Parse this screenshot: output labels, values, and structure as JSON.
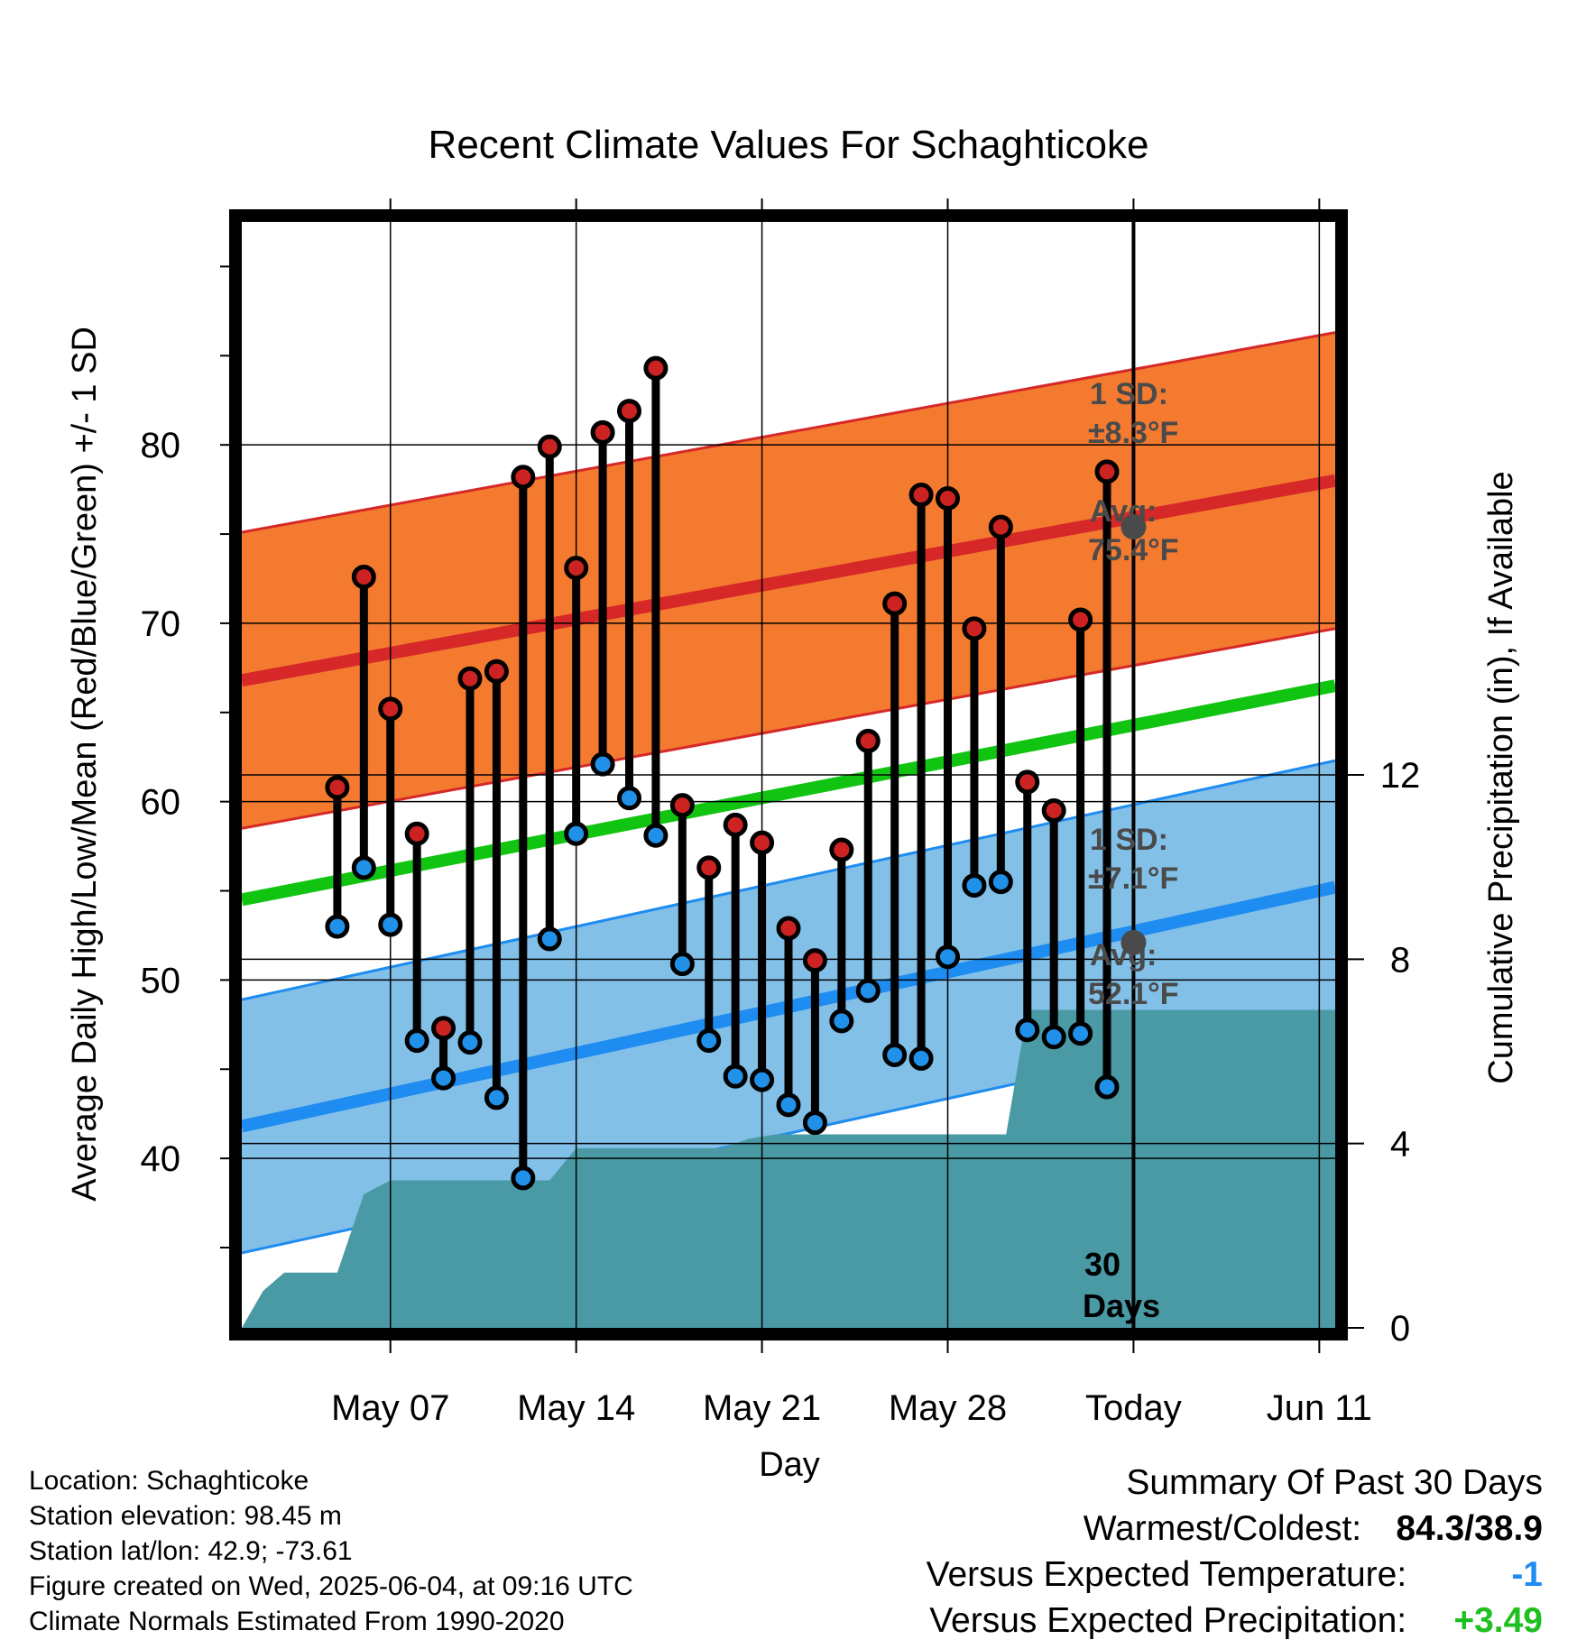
{
  "title": "Recent Climate Values For Schaghticoke",
  "chart_data": {
    "type": "line",
    "title": "Recent Climate Values For Schaghticoke",
    "xlabel": "Day",
    "ylabel": "Average Daily High/Low/Mean (Red/Blue/Green) +/- 1 SD",
    "y2label": "Cumulative Precipitation (in), If Available",
    "ylim": [
      30.5,
      92.5
    ],
    "y2lim": [
      0,
      24
    ],
    "y_ticks": [
      40,
      50,
      60,
      70,
      80
    ],
    "y2_ticks": [
      0,
      4,
      8,
      12
    ],
    "x_range_days": [
      -1.6,
      39.6
    ],
    "x_ticks": [
      {
        "day": 4,
        "label": "May 07"
      },
      {
        "day": 11,
        "label": "May 14"
      },
      {
        "day": 18,
        "label": "May 21"
      },
      {
        "day": 25,
        "label": "May 28"
      },
      {
        "day": 32,
        "label": "Today"
      },
      {
        "day": 39,
        "label": "Jun 11"
      }
    ],
    "today_day": 32,
    "daily": [
      {
        "day": 2,
        "high": 60.8,
        "low": 53.0
      },
      {
        "day": 3,
        "high": 72.6,
        "low": 56.3
      },
      {
        "day": 4,
        "high": 65.2,
        "low": 53.1
      },
      {
        "day": 5,
        "high": 58.2,
        "low": 46.6
      },
      {
        "day": 6,
        "high": 47.3,
        "low": 44.5
      },
      {
        "day": 7,
        "high": 66.9,
        "low": 46.5
      },
      {
        "day": 8,
        "high": 67.3,
        "low": 43.4
      },
      {
        "day": 9,
        "high": 78.2,
        "low": 38.9
      },
      {
        "day": 10,
        "high": 79.9,
        "low": 52.3
      },
      {
        "day": 11,
        "high": 73.1,
        "low": 58.2
      },
      {
        "day": 12,
        "high": 80.7,
        "low": 62.1
      },
      {
        "day": 13,
        "high": 81.9,
        "low": 60.2
      },
      {
        "day": 14,
        "high": 84.3,
        "low": 58.1
      },
      {
        "day": 15,
        "high": 59.8,
        "low": 50.9
      },
      {
        "day": 16,
        "high": 56.3,
        "low": 46.6
      },
      {
        "day": 17,
        "high": 58.7,
        "low": 44.6
      },
      {
        "day": 18,
        "high": 57.7,
        "low": 44.4
      },
      {
        "day": 19,
        "high": 52.9,
        "low": 43.0
      },
      {
        "day": 20,
        "high": 51.1,
        "low": 42.0
      },
      {
        "day": 21,
        "high": 57.3,
        "low": 47.7
      },
      {
        "day": 22,
        "high": 63.4,
        "low": 49.4
      },
      {
        "day": 23,
        "high": 71.1,
        "low": 45.8
      },
      {
        "day": 24,
        "high": 77.2,
        "low": 45.6
      },
      {
        "day": 25,
        "high": 77.0,
        "low": 51.3
      },
      {
        "day": 26,
        "high": 69.7,
        "low": 55.3
      },
      {
        "day": 27,
        "high": 75.4,
        "low": 55.5
      },
      {
        "day": 28,
        "high": 61.1,
        "low": 47.2
      },
      {
        "day": 29,
        "high": 59.5,
        "low": 46.8
      },
      {
        "day": 30,
        "high": 70.2,
        "low": 47.0
      },
      {
        "day": 31,
        "high": 78.5,
        "low": 44.0
      }
    ],
    "normals": {
      "high_avg": {
        "start_day": -1.6,
        "start": 66.8,
        "end_day": 39.6,
        "end": 78.0
      },
      "high_sd": 8.3,
      "low_avg": {
        "start_day": -1.6,
        "start": 41.8,
        "end_day": 39.6,
        "end": 55.2
      },
      "low_sd": 7.1,
      "mean_avg": {
        "start_day": -1.6,
        "start": 54.5,
        "end_day": 39.6,
        "end": 66.5
      }
    },
    "precip_cumulative": [
      {
        "day": -1.6,
        "in": 0.0
      },
      {
        "day": -0.8,
        "in": 0.8
      },
      {
        "day": 0.0,
        "in": 1.2
      },
      {
        "day": 2.0,
        "in": 1.2
      },
      {
        "day": 3.0,
        "in": 2.9
      },
      {
        "day": 4.0,
        "in": 3.2
      },
      {
        "day": 10.0,
        "in": 3.2
      },
      {
        "day": 11.0,
        "in": 3.9
      },
      {
        "day": 16.5,
        "in": 3.9
      },
      {
        "day": 17.5,
        "in": 4.1
      },
      {
        "day": 18.5,
        "in": 4.2
      },
      {
        "day": 27.2,
        "in": 4.2
      },
      {
        "day": 28.0,
        "in": 6.9
      },
      {
        "day": 39.6,
        "in": 6.9
      }
    ],
    "today_avg_high": 75.4,
    "today_avg_low": 52.1,
    "colors": {
      "high_band": "#f47a30",
      "high_line": "#d62828",
      "low_band": "#82c0e8",
      "low_line": "#1e8cf0",
      "mean_line": "#12c412",
      "precip": "#4a9aa5",
      "high_dot": "#cc2222",
      "low_dot": "#2090e8",
      "annotation": "#4a4a4a"
    }
  },
  "annotations": {
    "high_sd_label": "1 SD:",
    "high_sd_value": "±8.3°F",
    "high_avg_label": "Avg:",
    "high_avg_value": "75.4°F",
    "low_sd_label": "1 SD:",
    "low_sd_value": "±7.1°F",
    "low_avg_label": "Avg:",
    "low_avg_value": "52.1°F",
    "days_number": "30",
    "days_word": "Days"
  },
  "footer_left": {
    "location": "Location: Schaghticoke",
    "elevation": "Station elevation: 98.45 m",
    "latlon": "Station lat/lon: 42.9; -73.61",
    "created": "Figure created on Wed, 2025-06-04, at 09:16 UTC",
    "normals": "Climate Normals Estimated From 1990-2020"
  },
  "summary": {
    "heading": "Summary Of Past 30 Days",
    "warmest_label": "Warmest/Coldest:",
    "warmest_value": "84.3/38.9",
    "temp_label": "Versus Expected Temperature:",
    "temp_value": "-1",
    "temp_color": "#1e8cf0",
    "precip_label": "Versus Expected Precipitation:",
    "precip_value": "+3.49",
    "precip_color": "#1fbf1f"
  }
}
